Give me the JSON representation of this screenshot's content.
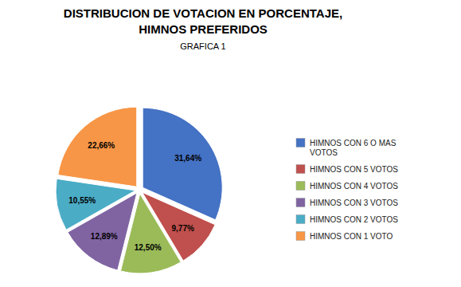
{
  "chart_data": {
    "type": "pie",
    "title": "DISTRIBUCION DE VOTACION EN PORCENTAJE,\nHIMNOS PREFERIDOS",
    "subtitle": "GRAFICA 1",
    "categories": [
      "HIMNOS CON 6 O MAS\nVOTOS",
      "HIMNOS CON 5 VOTOS",
      "HIMNOS CON 4 VOTOS",
      "HIMNOS CON 3 VOTOS",
      "HIMNOS CON 2 VOTOS",
      "HIMNOS CON 1 VOTO"
    ],
    "values": [
      31.64,
      9.77,
      12.5,
      12.89,
      10.55,
      22.66
    ],
    "value_labels": [
      "31,64%",
      "9,77%",
      "12,50%",
      "12,89%",
      "10,55%",
      "22,66%"
    ],
    "colors": [
      "#4472C4",
      "#C0504D",
      "#9BBB59",
      "#8064A2",
      "#4BACC6",
      "#F79646"
    ],
    "data_labels": true,
    "legend": "right"
  }
}
